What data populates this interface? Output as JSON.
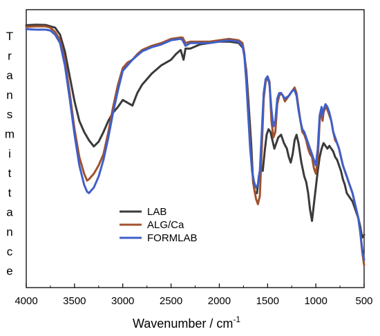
{
  "chart_data": {
    "type": "line",
    "xlabel": "Wavenumber / cm",
    "xlabel_superscript": "-1",
    "ylabel": "Transmittance",
    "xlim": [
      4000,
      500
    ],
    "x_reversed": true,
    "x_ticks": [
      4000,
      3500,
      3000,
      2500,
      2000,
      1500,
      1000,
      500
    ],
    "y_ticks_shown": false,
    "y_units": "relative transmittance (arbitrary, 0 = bottom of frame, 1 = top)",
    "ylim": [
      0,
      1
    ],
    "legend_position": "lower-left-center",
    "grid": false,
    "series": [
      {
        "name": "LAB",
        "color": "#3a3a3a",
        "points": [
          [
            4000,
            0.944
          ],
          [
            3900,
            0.946
          ],
          [
            3800,
            0.945
          ],
          [
            3700,
            0.935
          ],
          [
            3650,
            0.91
          ],
          [
            3600,
            0.85
          ],
          [
            3550,
            0.76
          ],
          [
            3500,
            0.67
          ],
          [
            3450,
            0.6
          ],
          [
            3400,
            0.56
          ],
          [
            3350,
            0.53
          ],
          [
            3300,
            0.508
          ],
          [
            3250,
            0.525
          ],
          [
            3200,
            0.56
          ],
          [
            3150,
            0.6
          ],
          [
            3100,
            0.63
          ],
          [
            3050,
            0.65
          ],
          [
            3000,
            0.675
          ],
          [
            2950,
            0.665
          ],
          [
            2900,
            0.655
          ],
          [
            2850,
            0.7
          ],
          [
            2800,
            0.73
          ],
          [
            2700,
            0.77
          ],
          [
            2600,
            0.8
          ],
          [
            2500,
            0.82
          ],
          [
            2450,
            0.84
          ],
          [
            2400,
            0.855
          ],
          [
            2370,
            0.82
          ],
          [
            2350,
            0.86
          ],
          [
            2300,
            0.86
          ],
          [
            2200,
            0.875
          ],
          [
            2100,
            0.88
          ],
          [
            2000,
            0.885
          ],
          [
            1900,
            0.885
          ],
          [
            1800,
            0.88
          ],
          [
            1750,
            0.86
          ],
          [
            1720,
            0.78
          ],
          [
            1700,
            0.68
          ],
          [
            1670,
            0.52
          ],
          [
            1650,
            0.38
          ],
          [
            1630,
            0.34
          ],
          [
            1610,
            0.34
          ],
          [
            1590,
            0.4
          ],
          [
            1570,
            0.44
          ],
          [
            1550,
            0.42
          ],
          [
            1530,
            0.49
          ],
          [
            1510,
            0.55
          ],
          [
            1490,
            0.57
          ],
          [
            1470,
            0.56
          ],
          [
            1450,
            0.53
          ],
          [
            1430,
            0.5
          ],
          [
            1410,
            0.52
          ],
          [
            1390,
            0.54
          ],
          [
            1360,
            0.55
          ],
          [
            1330,
            0.52
          ],
          [
            1300,
            0.5
          ],
          [
            1280,
            0.47
          ],
          [
            1260,
            0.45
          ],
          [
            1240,
            0.48
          ],
          [
            1220,
            0.53
          ],
          [
            1200,
            0.55
          ],
          [
            1180,
            0.52
          ],
          [
            1150,
            0.45
          ],
          [
            1120,
            0.4
          ],
          [
            1100,
            0.38
          ],
          [
            1080,
            0.34
          ],
          [
            1060,
            0.28
          ],
          [
            1040,
            0.24
          ],
          [
            1020,
            0.3
          ],
          [
            1000,
            0.36
          ],
          [
            980,
            0.42
          ],
          [
            960,
            0.47
          ],
          [
            940,
            0.5
          ],
          [
            920,
            0.52
          ],
          [
            900,
            0.51
          ],
          [
            880,
            0.5
          ],
          [
            860,
            0.51
          ],
          [
            840,
            0.5
          ],
          [
            820,
            0.49
          ],
          [
            800,
            0.47
          ],
          [
            780,
            0.46
          ],
          [
            760,
            0.44
          ],
          [
            740,
            0.42
          ],
          [
            720,
            0.39
          ],
          [
            700,
            0.37
          ],
          [
            680,
            0.34
          ],
          [
            660,
            0.33
          ],
          [
            640,
            0.32
          ],
          [
            620,
            0.31
          ],
          [
            600,
            0.29
          ],
          [
            580,
            0.27
          ],
          [
            560,
            0.25
          ],
          [
            540,
            0.22
          ],
          [
            520,
            0.18
          ],
          [
            500,
            0.19
          ]
        ]
      },
      {
        "name": "ALG/Ca",
        "color": "#a0522d",
        "points": [
          [
            4000,
            0.938
          ],
          [
            3900,
            0.94
          ],
          [
            3800,
            0.94
          ],
          [
            3750,
            0.935
          ],
          [
            3700,
            0.92
          ],
          [
            3650,
            0.89
          ],
          [
            3600,
            0.82
          ],
          [
            3550,
            0.7
          ],
          [
            3500,
            0.57
          ],
          [
            3450,
            0.47
          ],
          [
            3400,
            0.41
          ],
          [
            3370,
            0.385
          ],
          [
            3350,
            0.39
          ],
          [
            3300,
            0.41
          ],
          [
            3250,
            0.44
          ],
          [
            3200,
            0.48
          ],
          [
            3150,
            0.56
          ],
          [
            3100,
            0.65
          ],
          [
            3050,
            0.73
          ],
          [
            3000,
            0.79
          ],
          [
            2950,
            0.81
          ],
          [
            2900,
            0.82
          ],
          [
            2850,
            0.84
          ],
          [
            2800,
            0.855
          ],
          [
            2700,
            0.87
          ],
          [
            2600,
            0.88
          ],
          [
            2500,
            0.895
          ],
          [
            2400,
            0.9
          ],
          [
            2380,
            0.9
          ],
          [
            2350,
            0.88
          ],
          [
            2300,
            0.885
          ],
          [
            2200,
            0.885
          ],
          [
            2100,
            0.885
          ],
          [
            2000,
            0.89
          ],
          [
            1900,
            0.895
          ],
          [
            1800,
            0.89
          ],
          [
            1760,
            0.88
          ],
          [
            1740,
            0.84
          ],
          [
            1720,
            0.76
          ],
          [
            1700,
            0.64
          ],
          [
            1680,
            0.52
          ],
          [
            1660,
            0.42
          ],
          [
            1640,
            0.36
          ],
          [
            1620,
            0.32
          ],
          [
            1600,
            0.3
          ],
          [
            1580,
            0.33
          ],
          [
            1560,
            0.5
          ],
          [
            1540,
            0.68
          ],
          [
            1520,
            0.74
          ],
          [
            1500,
            0.76
          ],
          [
            1480,
            0.74
          ],
          [
            1460,
            0.6
          ],
          [
            1440,
            0.54
          ],
          [
            1420,
            0.56
          ],
          [
            1400,
            0.66
          ],
          [
            1380,
            0.69
          ],
          [
            1360,
            0.7
          ],
          [
            1340,
            0.69
          ],
          [
            1320,
            0.67
          ],
          [
            1300,
            0.68
          ],
          [
            1280,
            0.69
          ],
          [
            1260,
            0.7
          ],
          [
            1240,
            0.71
          ],
          [
            1220,
            0.72
          ],
          [
            1200,
            0.7
          ],
          [
            1180,
            0.65
          ],
          [
            1160,
            0.6
          ],
          [
            1140,
            0.56
          ],
          [
            1120,
            0.55
          ],
          [
            1100,
            0.53
          ],
          [
            1080,
            0.5
          ],
          [
            1060,
            0.48
          ],
          [
            1040,
            0.47
          ],
          [
            1020,
            0.43
          ],
          [
            1000,
            0.41
          ],
          [
            980,
            0.46
          ],
          [
            960,
            0.6
          ],
          [
            940,
            0.64
          ],
          [
            930,
            0.6
          ],
          [
            920,
            0.63
          ],
          [
            900,
            0.65
          ],
          [
            880,
            0.64
          ],
          [
            860,
            0.62
          ],
          [
            840,
            0.6
          ],
          [
            820,
            0.56
          ],
          [
            800,
            0.53
          ],
          [
            780,
            0.52
          ],
          [
            760,
            0.5
          ],
          [
            740,
            0.47
          ],
          [
            720,
            0.44
          ],
          [
            700,
            0.42
          ],
          [
            680,
            0.4
          ],
          [
            660,
            0.38
          ],
          [
            640,
            0.36
          ],
          [
            620,
            0.34
          ],
          [
            600,
            0.31
          ],
          [
            580,
            0.28
          ],
          [
            560,
            0.25
          ],
          [
            540,
            0.2
          ],
          [
            520,
            0.13
          ],
          [
            500,
            0.08
          ]
        ]
      },
      {
        "name": "FORMLAB",
        "color": "#3f5fc8",
        "points": [
          [
            4000,
            0.93
          ],
          [
            3900,
            0.928
          ],
          [
            3800,
            0.928
          ],
          [
            3750,
            0.925
          ],
          [
            3700,
            0.91
          ],
          [
            3650,
            0.88
          ],
          [
            3600,
            0.8
          ],
          [
            3550,
            0.68
          ],
          [
            3500,
            0.55
          ],
          [
            3450,
            0.44
          ],
          [
            3400,
            0.37
          ],
          [
            3370,
            0.345
          ],
          [
            3350,
            0.34
          ],
          [
            3300,
            0.36
          ],
          [
            3250,
            0.4
          ],
          [
            3200,
            0.46
          ],
          [
            3150,
            0.54
          ],
          [
            3100,
            0.63
          ],
          [
            3050,
            0.71
          ],
          [
            3000,
            0.78
          ],
          [
            2950,
            0.8
          ],
          [
            2900,
            0.82
          ],
          [
            2850,
            0.835
          ],
          [
            2800,
            0.85
          ],
          [
            2700,
            0.865
          ],
          [
            2600,
            0.875
          ],
          [
            2500,
            0.89
          ],
          [
            2400,
            0.895
          ],
          [
            2380,
            0.89
          ],
          [
            2350,
            0.87
          ],
          [
            2300,
            0.88
          ],
          [
            2200,
            0.88
          ],
          [
            2100,
            0.88
          ],
          [
            2000,
            0.885
          ],
          [
            1900,
            0.89
          ],
          [
            1800,
            0.885
          ],
          [
            1760,
            0.87
          ],
          [
            1740,
            0.83
          ],
          [
            1720,
            0.74
          ],
          [
            1700,
            0.62
          ],
          [
            1680,
            0.5
          ],
          [
            1660,
            0.42
          ],
          [
            1640,
            0.38
          ],
          [
            1620,
            0.36
          ],
          [
            1600,
            0.37
          ],
          [
            1580,
            0.42
          ],
          [
            1560,
            0.56
          ],
          [
            1540,
            0.7
          ],
          [
            1520,
            0.75
          ],
          [
            1500,
            0.76
          ],
          [
            1480,
            0.73
          ],
          [
            1460,
            0.64
          ],
          [
            1440,
            0.58
          ],
          [
            1420,
            0.6
          ],
          [
            1400,
            0.68
          ],
          [
            1380,
            0.7
          ],
          [
            1360,
            0.7
          ],
          [
            1340,
            0.69
          ],
          [
            1320,
            0.68
          ],
          [
            1300,
            0.685
          ],
          [
            1280,
            0.69
          ],
          [
            1260,
            0.7
          ],
          [
            1240,
            0.71
          ],
          [
            1220,
            0.71
          ],
          [
            1200,
            0.69
          ],
          [
            1180,
            0.64
          ],
          [
            1160,
            0.6
          ],
          [
            1140,
            0.57
          ],
          [
            1120,
            0.56
          ],
          [
            1100,
            0.54
          ],
          [
            1080,
            0.52
          ],
          [
            1060,
            0.5
          ],
          [
            1040,
            0.48
          ],
          [
            1020,
            0.46
          ],
          [
            1000,
            0.44
          ],
          [
            980,
            0.5
          ],
          [
            960,
            0.62
          ],
          [
            940,
            0.65
          ],
          [
            930,
            0.62
          ],
          [
            920,
            0.64
          ],
          [
            900,
            0.66
          ],
          [
            880,
            0.65
          ],
          [
            860,
            0.63
          ],
          [
            840,
            0.6
          ],
          [
            820,
            0.56
          ],
          [
            800,
            0.54
          ],
          [
            780,
            0.52
          ],
          [
            760,
            0.5
          ],
          [
            740,
            0.47
          ],
          [
            720,
            0.44
          ],
          [
            700,
            0.42
          ],
          [
            680,
            0.4
          ],
          [
            660,
            0.38
          ],
          [
            640,
            0.36
          ],
          [
            620,
            0.34
          ],
          [
            600,
            0.31
          ],
          [
            580,
            0.28
          ],
          [
            560,
            0.25
          ],
          [
            540,
            0.2
          ],
          [
            520,
            0.14
          ],
          [
            500,
            0.1
          ]
        ]
      }
    ]
  }
}
